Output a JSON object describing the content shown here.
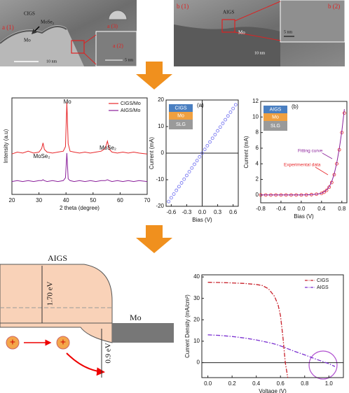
{
  "images": {
    "a": {
      "panel": "a (1)",
      "layer1": "CIGS",
      "layer2": "MoSe₂",
      "layer3": "Mo",
      "scale": "10 nm",
      "inset_top": "a (3)",
      "inset": "a (2)",
      "inset_scale": "5 nm"
    },
    "b": {
      "panel": "b (1)",
      "layer1": "AIGS",
      "layer2": "Mo",
      "scale": "10 nm",
      "inset": "b (2)",
      "inset_scale": "5 nm"
    }
  },
  "band_diagram": {
    "material": "AIGS",
    "gap": "1.70 eV",
    "barrier": "0.9 eV",
    "contact": "Mo"
  },
  "chart_data": [
    {
      "type": "line",
      "xlabel": "2 theta (degree)",
      "ylabel": "Intensity (a.u)",
      "x": [
        20,
        22,
        24,
        26,
        28,
        30,
        31,
        31.5,
        32,
        33,
        35,
        37,
        39,
        39.8,
        40.3,
        40.8,
        41.5,
        43,
        45,
        47,
        49,
        51,
        53,
        54.5,
        55.3,
        56,
        57,
        59,
        61,
        63,
        65,
        67,
        70
      ],
      "series": [
        {
          "name": "CIGS/Mo",
          "color": "#e8272a",
          "mode": "line",
          "values": [
            44,
            46,
            45,
            47,
            45,
            46,
            50,
            56,
            49,
            46,
            45,
            46,
            47,
            52,
            100,
            55,
            47,
            46,
            45,
            46,
            45,
            46,
            47,
            50,
            58,
            49,
            46,
            45,
            46,
            45,
            46,
            45,
            44
          ]
        },
        {
          "name": "AIGS/Mo",
          "color": "#8a1f9a",
          "mode": "line",
          "values": [
            14,
            15,
            14,
            15,
            14,
            15,
            15,
            16,
            15,
            14,
            15,
            14,
            15,
            18,
            45,
            17,
            15,
            14,
            15,
            14,
            15,
            14,
            15,
            15,
            16,
            15,
            14,
            15,
            14,
            15,
            14,
            15,
            14
          ]
        }
      ],
      "xlim": [
        20,
        70
      ],
      "xticks": [
        20,
        30,
        40,
        50,
        60,
        70
      ],
      "ylim": [
        0,
        105
      ],
      "legend": "upper right",
      "annotations": [
        {
          "text": "MoSe₂",
          "color": "#111"
        },
        {
          "text": "Mo",
          "color": "#111"
        },
        {
          "text": "MoSe₂",
          "color": "#111"
        }
      ]
    },
    {
      "type": "line",
      "panel": "(a)",
      "xlabel": "Bias (V)",
      "ylabel": "Current (mA)",
      "x": [
        -0.65,
        -0.6,
        -0.55,
        -0.5,
        -0.45,
        -0.4,
        -0.35,
        -0.3,
        -0.25,
        -0.2,
        -0.15,
        -0.1,
        -0.05,
        0,
        0.05,
        0.1,
        0.15,
        0.2,
        0.25,
        0.3,
        0.35,
        0.4,
        0.45,
        0.5,
        0.55,
        0.6,
        0.65
      ],
      "series": [
        {
          "color": "#6a6af0",
          "mode": "markers",
          "values": [
            -18.2,
            -16.8,
            -15.4,
            -14,
            -12.6,
            -11.2,
            -9.8,
            -8.4,
            -7,
            -5.6,
            -4.2,
            -2.8,
            -1.4,
            0,
            1.4,
            2.8,
            4.2,
            5.6,
            7,
            8.4,
            9.8,
            11.2,
            12.6,
            14,
            15.4,
            16.8,
            18.2
          ]
        }
      ],
      "xlim": [
        -0.7,
        0.7
      ],
      "xticks": [
        -0.6,
        -0.3,
        {
          "value": 0,
          "label": "0.0"
        },
        0.3,
        0.6
      ],
      "ylim": [
        -20,
        20
      ],
      "yticks": [
        -20,
        -10,
        0,
        10,
        20
      ],
      "zero_lines": "xy",
      "inset_layers": [
        {
          "name": "CIGS",
          "color": "#4a7fc1"
        },
        {
          "name": "Mo",
          "color": "#f0a040"
        },
        {
          "name": "SLG",
          "color": "#9a9a9a"
        }
      ]
    },
    {
      "type": "line",
      "panel": "(b)",
      "xlabel": "Bias (V)",
      "ylabel": "Current (mA)",
      "x": [
        -0.8,
        -0.7,
        -0.6,
        -0.5,
        -0.4,
        -0.3,
        -0.2,
        -0.1,
        0,
        0.1,
        0.2,
        0.3,
        0.4,
        0.45,
        0.5,
        0.55,
        0.6,
        0.65,
        0.7,
        0.75,
        0.8,
        0.85
      ],
      "series": [
        {
          "color": "#e8272a",
          "mode": "markers",
          "values": [
            0,
            0,
            0,
            0,
            0,
            0,
            0,
            0,
            0,
            0.02,
            0.05,
            0.1,
            0.2,
            0.35,
            0.6,
            1,
            1.6,
            2.6,
            4,
            5.8,
            8,
            10.5
          ]
        },
        {
          "color": "#8a1f9a",
          "mode": "line",
          "values": [
            0,
            0,
            0,
            0,
            0,
            0,
            0,
            0,
            0,
            0.02,
            0.05,
            0.1,
            0.22,
            0.4,
            0.65,
            1.05,
            1.7,
            2.7,
            4.1,
            5.9,
            8.2,
            11
          ]
        }
      ],
      "xlim": [
        -0.8,
        0.9
      ],
      "xticks": [
        -0.8,
        -0.4,
        {
          "value": 0,
          "label": "0.0"
        },
        0.4,
        0.8
      ],
      "ylim": [
        -1,
        12
      ],
      "yticks": [
        0,
        2,
        4,
        6,
        8,
        10,
        12
      ],
      "annotations": [
        {
          "text": "Fitting curve",
          "color": "#8a1f9a"
        },
        {
          "text": "Experimental data",
          "color": "#e8272a"
        }
      ],
      "inset_layers": [
        {
          "name": "AIGS",
          "color": "#4a7fc1"
        },
        {
          "name": "Mo",
          "color": "#f0a040"
        },
        {
          "name": "SLG",
          "color": "#9a9a9a"
        }
      ]
    },
    {
      "type": "line",
      "xlabel": "Voltage (V)",
      "ylabel": "Current Density (mA/cm²)",
      "x": [
        0,
        0.1,
        0.2,
        0.3,
        0.4,
        0.45,
        0.5,
        0.55,
        0.58,
        0.6,
        0.62,
        0.64,
        0.66,
        0.7,
        0.8,
        0.9,
        1.0,
        1.05
      ],
      "series": [
        {
          "name": "CIGS",
          "color": "#c8202a",
          "mode": "dashdot",
          "values": [
            37.5,
            37.4,
            37.2,
            37,
            36.5,
            36,
            34.5,
            31,
            27,
            22,
            12,
            0,
            -7,
            null,
            null,
            null,
            null,
            null
          ]
        },
        {
          "name": "AIGS",
          "color": "#7a2fd0",
          "mode": "dashdot",
          "values": [
            13,
            12.7,
            12.2,
            11.5,
            10.6,
            10,
            9.4,
            8.7,
            8.2,
            7.8,
            7.4,
            7,
            6.5,
            5.6,
            3.6,
            1.5,
            -0.5,
            -1.8
          ]
        }
      ],
      "xlim": [
        -0.05,
        1.12
      ],
      "xticks": [
        {
          "value": 0,
          "label": "0.0"
        },
        0.2,
        0.4,
        0.6,
        0.8,
        {
          "value": 1,
          "label": "1.0"
        }
      ],
      "ylim": [
        -7,
        41
      ],
      "yticks": [
        0,
        10,
        20,
        30,
        40
      ],
      "zero_lines": "y",
      "legend": "upper right"
    }
  ]
}
